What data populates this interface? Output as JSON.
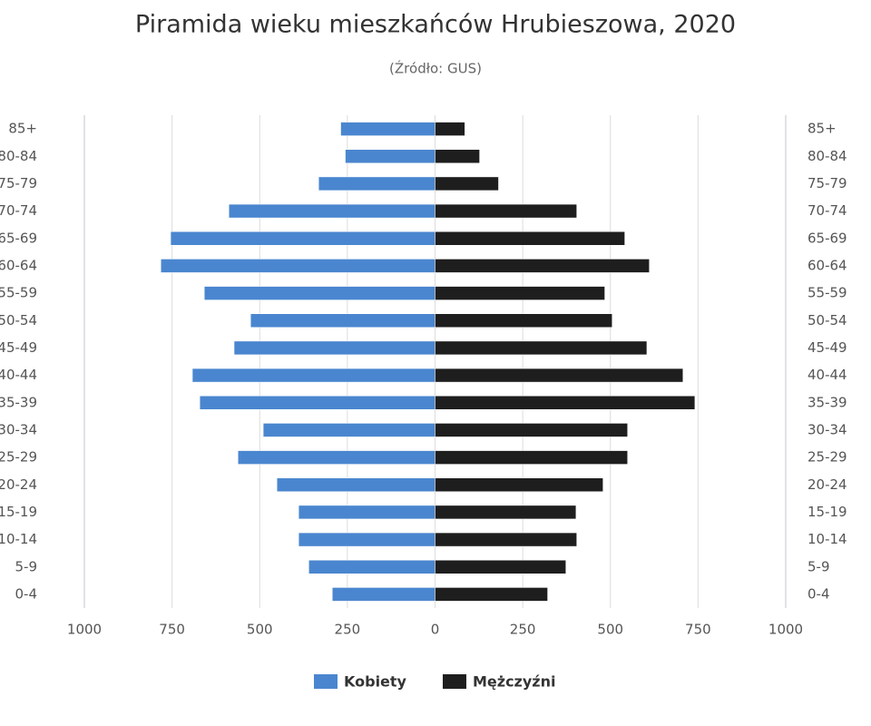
{
  "chart_data": {
    "type": "pyramid",
    "title": "Piramida wieku mieszkańców Hrubieszowa, 2020",
    "subtitle": "(Źródło: GUS)",
    "categories": [
      "85+",
      "80-84",
      "75-79",
      "70-74",
      "65-69",
      "60-64",
      "55-59",
      "50-54",
      "45-49",
      "40-44",
      "35-39",
      "30-34",
      "25-29",
      "20-24",
      "15-19",
      "10-14",
      "5-9",
      "0-4"
    ],
    "series": [
      {
        "name": "Kobiety",
        "color": "#4a86cf",
        "side": "left",
        "values": [
          269,
          256,
          332,
          588,
          754,
          782,
          658,
          526,
          573,
          692,
          671,
          490,
          562,
          451,
          389,
          389,
          360,
          293
        ]
      },
      {
        "name": "Mężczyźni",
        "color": "#1e1e1e",
        "side": "right",
        "values": [
          85,
          127,
          181,
          404,
          541,
          611,
          484,
          505,
          604,
          707,
          741,
          549,
          549,
          479,
          402,
          404,
          373,
          321
        ]
      }
    ],
    "xlim": [
      -1000,
      1000
    ],
    "xticks": [
      {
        "value": -1000,
        "label": "1000"
      },
      {
        "value": -750,
        "label": "750"
      },
      {
        "value": -500,
        "label": "500"
      },
      {
        "value": -250,
        "label": "250"
      },
      0,
      250,
      500,
      750,
      1000
    ],
    "grid": true,
    "legend": "bottom"
  }
}
